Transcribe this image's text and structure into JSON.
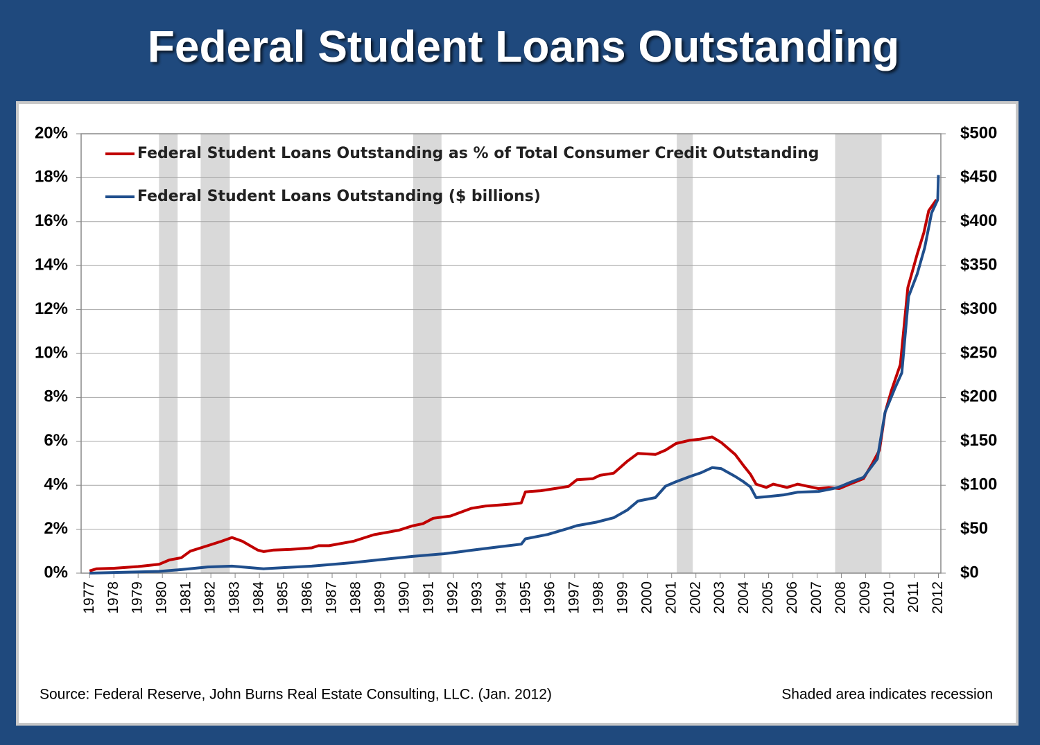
{
  "chart_data": {
    "type": "line",
    "title": "Federal Student Loans Outstanding",
    "source": "Source: Federal Reserve, John Burns Real Estate Consulting, LLC. (Jan. 2012)",
    "recession_note": "Shaded area indicates recession",
    "recessions": [
      [
        1979.86,
        1980.63
      ],
      [
        1981.58,
        1982.78
      ],
      [
        1990.34,
        1991.51
      ],
      [
        2001.21,
        2001.87
      ],
      [
        2007.74,
        2009.66
      ]
    ],
    "recession_color": "#d9d9d9",
    "xlim": [
      1976.65,
      2012.1
    ],
    "xticks": [
      1977,
      1978,
      1979,
      1980,
      1981,
      1982,
      1983,
      1984,
      1985,
      1986,
      1987,
      1988,
      1989,
      1990,
      1991,
      1992,
      1993,
      1994,
      1995,
      1996,
      1997,
      1998,
      1999,
      2000,
      2001,
      2002,
      2003,
      2004,
      2005,
      2006,
      2007,
      2008,
      2009,
      2010,
      2011,
      2012
    ],
    "ylim": [
      0,
      20
    ],
    "yticks": [
      {
        "value": 0,
        "label": "0%"
      },
      {
        "value": 2,
        "label": "2%"
      },
      {
        "value": 4,
        "label": "4%"
      },
      {
        "value": 6,
        "label": "6%"
      },
      {
        "value": 8,
        "label": "8%"
      },
      {
        "value": 10,
        "label": "10%"
      },
      {
        "value": 12,
        "label": "12%"
      },
      {
        "value": 14,
        "label": "14%"
      },
      {
        "value": 16,
        "label": "16%"
      },
      {
        "value": 18,
        "label": "18%"
      },
      {
        "value": 20,
        "label": "20%"
      }
    ],
    "y2lim": [
      0,
      500
    ],
    "y2ticks": [
      {
        "value": 0,
        "label": "$0"
      },
      {
        "value": 50,
        "label": "$50"
      },
      {
        "value": 100,
        "label": "$100"
      },
      {
        "value": 150,
        "label": "$150"
      },
      {
        "value": 200,
        "label": "$200"
      },
      {
        "value": 250,
        "label": "$250"
      },
      {
        "value": 300,
        "label": "$300"
      },
      {
        "value": 350,
        "label": "$350"
      },
      {
        "value": 400,
        "label": "$400"
      },
      {
        "value": 450,
        "label": "$450"
      },
      {
        "value": 500,
        "label": "$500"
      }
    ],
    "grid": true,
    "legend": "upper left",
    "series": [
      {
        "name": "Federal Student Loans Outstanding as % of Total Consumer Credit Outstanding",
        "color": "#c00000",
        "axis": "y",
        "x": [
          1977.0,
          1977.29,
          1978.0,
          1979.0,
          1979.86,
          1980.29,
          1980.78,
          1981.15,
          1981.87,
          1982.44,
          1982.87,
          1983.3,
          1983.93,
          1984.18,
          1984.58,
          1985.3,
          1986.16,
          1986.44,
          1986.87,
          1987.88,
          1988.73,
          1989.74,
          1990.31,
          1990.74,
          1991.17,
          1991.88,
          1992.74,
          1993.31,
          1993.89,
          1994.46,
          1994.8,
          1994.97,
          1995.6,
          1996.18,
          1996.75,
          1997.09,
          1997.75,
          1998.04,
          1998.61,
          1999.18,
          1999.61,
          2000.33,
          2000.75,
          2001.18,
          2001.76,
          2002.19,
          2002.67,
          2003.04,
          2003.62,
          2003.96,
          2004.25,
          2004.48,
          2004.9,
          2005.19,
          2005.76,
          2006.19,
          2006.62,
          2007.05,
          2007.48,
          2007.91,
          2008.34,
          2008.91,
          2009.28,
          2009.57,
          2009.8,
          2010.06,
          2010.43,
          2010.74,
          2011.12,
          2011.4,
          2011.6,
          2011.92
        ],
        "values": [
          0.1,
          0.2,
          0.22,
          0.3,
          0.4,
          0.6,
          0.7,
          1.0,
          1.25,
          1.45,
          1.62,
          1.45,
          1.05,
          0.98,
          1.05,
          1.08,
          1.15,
          1.25,
          1.25,
          1.45,
          1.75,
          1.95,
          2.15,
          2.25,
          2.5,
          2.6,
          2.95,
          3.05,
          3.1,
          3.15,
          3.2,
          3.7,
          3.75,
          3.85,
          3.95,
          4.25,
          4.3,
          4.45,
          4.55,
          5.1,
          5.45,
          5.4,
          5.6,
          5.9,
          6.05,
          6.1,
          6.2,
          5.95,
          5.4,
          4.9,
          4.5,
          4.05,
          3.9,
          4.05,
          3.9,
          4.05,
          3.95,
          3.85,
          3.9,
          3.85,
          4.05,
          4.3,
          5.0,
          5.6,
          7.3,
          8.3,
          9.5,
          13.0,
          14.5,
          15.5,
          16.5,
          17.0
        ]
      },
      {
        "name": "Federal Student Loans Outstanding ($ billions)",
        "color": "#1f4e8c",
        "axis": "y2",
        "x": [
          1977.0,
          1979.86,
          1980.78,
          1981.87,
          1982.87,
          1984.18,
          1986.16,
          1987.88,
          1988.88,
          1990.31,
          1991.6,
          1992.17,
          1992.74,
          1993.89,
          1994.8,
          1994.97,
          1995.89,
          1996.75,
          1997.09,
          1997.89,
          1998.61,
          1999.18,
          1999.61,
          2000.33,
          2000.75,
          2001.18,
          2001.76,
          2002.19,
          2002.67,
          2003.04,
          2003.62,
          2003.96,
          2004.25,
          2004.48,
          2004.9,
          2005.62,
          2006.19,
          2007.05,
          2007.62,
          2007.91,
          2008.34,
          2008.91,
          2009.48,
          2009.8,
          2010.2,
          2010.49,
          2010.77,
          2011.12,
          2011.43,
          2011.72,
          2011.97,
          2012.0
        ],
        "values": [
          0,
          2,
          4,
          7,
          8,
          5,
          8,
          12,
          15,
          19,
          22,
          24,
          26,
          30,
          33,
          39,
          44,
          51,
          54,
          58,
          63,
          72,
          82,
          86,
          99,
          104,
          110,
          114,
          120,
          119,
          110,
          104,
          98,
          86,
          87,
          89,
          92,
          93,
          96,
          98,
          103,
          109,
          130,
          183,
          210,
          228,
          315,
          340,
          370,
          410,
          425,
          453
        ]
      }
    ]
  }
}
